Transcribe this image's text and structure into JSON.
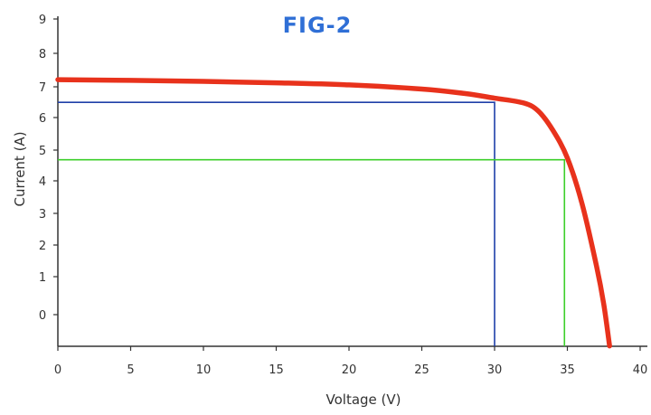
{
  "chart_data": {
    "type": "line",
    "title": "FIG-2",
    "xlabel": "Voltage (V)",
    "ylabel": "Current (A)",
    "xlim": [
      0,
      40
    ],
    "x_ticks": [
      0,
      5,
      10,
      15,
      20,
      25,
      30,
      35,
      40
    ],
    "y_tick_labels": [
      "0",
      "1",
      "2",
      "3",
      "4",
      "5",
      "6",
      "7",
      "8",
      "9"
    ],
    "grid": false,
    "series": [
      {
        "color": "#e8321c",
        "points": [
          [
            0,
            6.75
          ],
          [
            5,
            6.73
          ],
          [
            10,
            6.7
          ],
          [
            15,
            6.66
          ],
          [
            20,
            6.6
          ],
          [
            25,
            6.48
          ],
          [
            28,
            6.35
          ],
          [
            30,
            6.22
          ],
          [
            32,
            6.08
          ],
          [
            33,
            5.85
          ],
          [
            34,
            5.3
          ],
          [
            35,
            4.5
          ],
          [
            36,
            3.2
          ],
          [
            37,
            1.4
          ],
          [
            37.5,
            0.3
          ],
          [
            37.9,
            -0.9
          ]
        ]
      }
    ],
    "markers": [
      {
        "x": 30,
        "y": 6.1,
        "color": "#1e3fa8"
      },
      {
        "x": 34.8,
        "y": 4.45,
        "color": "#3ccf2a"
      }
    ]
  }
}
